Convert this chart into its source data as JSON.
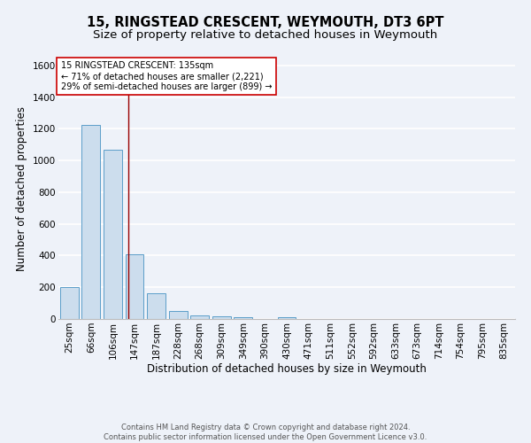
{
  "title": "15, RINGSTEAD CRESCENT, WEYMOUTH, DT3 6PT",
  "subtitle": "Size of property relative to detached houses in Weymouth",
  "xlabel": "Distribution of detached houses by size in Weymouth",
  "ylabel": "Number of detached properties",
  "categories": [
    "25sqm",
    "66sqm",
    "106sqm",
    "147sqm",
    "187sqm",
    "228sqm",
    "268sqm",
    "309sqm",
    "349sqm",
    "390sqm",
    "430sqm",
    "471sqm",
    "511sqm",
    "552sqm",
    "592sqm",
    "633sqm",
    "673sqm",
    "714sqm",
    "754sqm",
    "795sqm",
    "835sqm"
  ],
  "values": [
    200,
    1225,
    1070,
    410,
    165,
    52,
    25,
    15,
    10,
    0,
    10,
    0,
    0,
    0,
    0,
    0,
    0,
    0,
    0,
    0,
    0
  ],
  "bar_color": "#ccdded",
  "bar_edge_color": "#5b9ec9",
  "background_color": "#eef2f9",
  "grid_color": "#ffffff",
  "annotation_line_color": "#990000",
  "annotation_box_text": "15 RINGSTEAD CRESCENT: 135sqm\n← 71% of detached houses are smaller (2,221)\n29% of semi-detached houses are larger (899) →",
  "annotation_box_color": "#ffffff",
  "annotation_box_edge_color": "#cc0000",
  "footer_text": "Contains HM Land Registry data © Crown copyright and database right 2024.\nContains public sector information licensed under the Open Government Licence v3.0.",
  "ylim": [
    0,
    1650
  ],
  "yticks": [
    0,
    200,
    400,
    600,
    800,
    1000,
    1200,
    1400,
    1600
  ],
  "title_fontsize": 10.5,
  "subtitle_fontsize": 9.5,
  "axis_label_fontsize": 8.5,
  "tick_fontsize": 7.5,
  "annotation_fontsize": 7.0,
  "footer_fontsize": 6.0,
  "red_line_index": 2.707
}
